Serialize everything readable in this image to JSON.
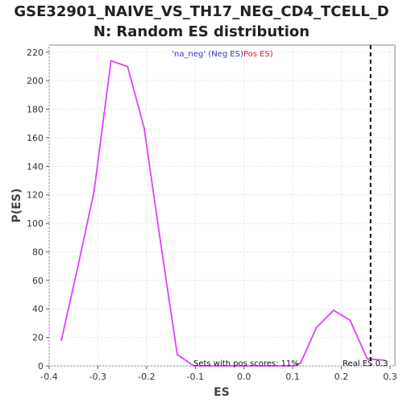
{
  "title_line1": "GSE32901_NAIVE_VS_TH17_NEG_CD4_TCELL_D",
  "title_line2": "N: Random ES distribution",
  "chart_data": {
    "type": "line",
    "title": "GSE32901_NAIVE_VS_TH17_NEG_CD4_TCELL_DN: Random ES distribution",
    "xlabel": "ES",
    "ylabel": "P(ES)",
    "xlim": [
      -0.4,
      0.31
    ],
    "ylim": [
      0,
      225
    ],
    "xticks": [
      -0.4,
      -0.3,
      -0.2,
      -0.1,
      0.0,
      0.1,
      0.2,
      0.3
    ],
    "xtick_labels": [
      "-0.4",
      "-0.3",
      "-0.2",
      "-0.1",
      "0.0",
      "0.1",
      "0.2",
      "0.3"
    ],
    "yticks": [
      0,
      20,
      40,
      60,
      80,
      100,
      120,
      140,
      160,
      180,
      200,
      220
    ],
    "ytick_labels": [
      "0",
      "20",
      "40",
      "60",
      "80",
      "100",
      "120",
      "140",
      "160",
      "180",
      "200",
      "220"
    ],
    "grid": true,
    "series": [
      {
        "color": "#e040fb",
        "x": [
          -0.375,
          -0.342,
          -0.308,
          -0.273,
          -0.239,
          -0.205,
          -0.171,
          -0.137,
          -0.103,
          -0.069,
          -0.034,
          0.0,
          0.034,
          0.068,
          0.103,
          0.116,
          0.149,
          0.184,
          0.218,
          0.253,
          0.288
        ],
        "y": [
          18,
          68,
          122,
          214,
          210,
          167,
          86,
          8,
          0,
          0,
          0,
          0,
          0,
          0,
          0,
          2,
          27,
          39,
          32,
          5,
          4
        ]
      }
    ],
    "real_es": 0.26,
    "legend": {
      "parts": [
        {
          "text": "'na_neg' (",
          "color": "#3333cc"
        },
        {
          "text": "Neg ES",
          "color": "#3333cc"
        },
        {
          "text": ")",
          "color": "#3333cc"
        },
        {
          "text": "Pos ES)",
          "color": "#e02020"
        }
      ]
    },
    "annotations": {
      "pos_scores": "Sets with pos scores: 11%",
      "real_es_label": "Real ES 0.3"
    }
  }
}
